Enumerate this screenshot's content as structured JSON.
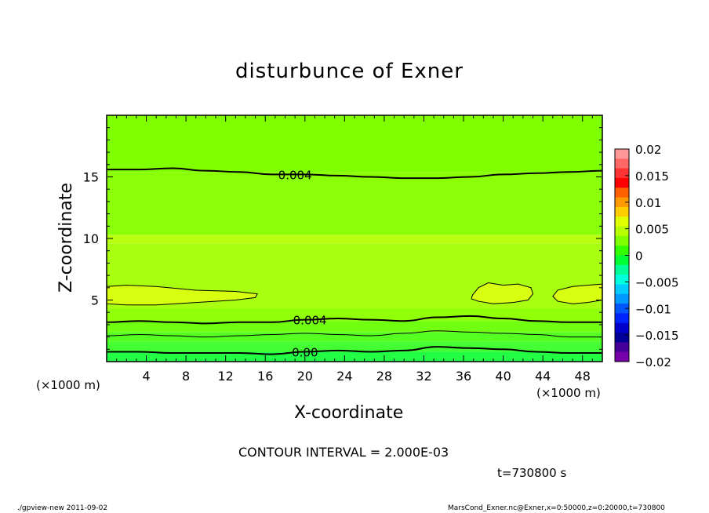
{
  "chart_data": {
    "type": "heatmap",
    "title": "disturbunce of Exner",
    "xlabel": "X-coordinate",
    "ylabel": "Z-coordinate",
    "x_unit": "(×1000 m)",
    "y_unit": "(×1000 m)",
    "xlim": [
      0,
      50
    ],
    "ylim": [
      0,
      20
    ],
    "x_ticks": [
      4,
      8,
      12,
      16,
      20,
      24,
      28,
      32,
      36,
      40,
      44,
      48
    ],
    "y_ticks": [
      5,
      10,
      15
    ],
    "colorbar": {
      "ticks": [
        0.02,
        0.015,
        0.01,
        0.005,
        0,
        -0.005,
        -0.01,
        -0.015,
        -0.02
      ],
      "tick_labels": [
        "0.02",
        "0.015",
        "0.01",
        "0.005",
        "0",
        "−0.005",
        "−0.01",
        "−0.015",
        "−0.02"
      ],
      "range": [
        -0.02,
        0.02
      ],
      "colors_top_to_bottom": [
        "#ff9999",
        "#ff6666",
        "#ff3333",
        "#ff0000",
        "#ff6000",
        "#ff9900",
        "#ffcc00",
        "#e0ff00",
        "#b8ff00",
        "#80ff00",
        "#33ff00",
        "#00ff33",
        "#00ff99",
        "#00ffdd",
        "#00ccff",
        "#0099ff",
        "#0055ff",
        "#0022ff",
        "#0000cc",
        "#000099",
        "#440099",
        "#7700aa"
      ]
    },
    "bands": [
      {
        "z_range": [
          0,
          0.8
        ],
        "color": "#22ff44"
      },
      {
        "z_range": [
          0.8,
          1.6
        ],
        "color": "#44ff33"
      },
      {
        "z_range": [
          1.6,
          2.4
        ],
        "color": "#55ff22"
      },
      {
        "z_range": [
          2.4,
          3.3
        ],
        "color": "#70ff10"
      },
      {
        "z_range": [
          3.3,
          4.3
        ],
        "color": "#90ff08"
      },
      {
        "z_range": [
          4.3,
          9.6
        ],
        "color": "#a8ff10"
      },
      {
        "z_range": [
          9.6,
          10.3
        ],
        "color": "#b8ff10"
      },
      {
        "z_range": [
          10.3,
          15.4
        ],
        "color": "#8aff08"
      },
      {
        "z_range": [
          15.4,
          20
        ],
        "color": "#80ff00"
      }
    ],
    "contours": [
      {
        "z": [
          15.6,
          15.6,
          15.7,
          15.5,
          15.4,
          15.2,
          15.2,
          15.1,
          15.0,
          14.9,
          14.9,
          15.0,
          15.2,
          15.3,
          15.4,
          15.5
        ],
        "label": "0.004",
        "label_x": 19,
        "width": 2
      },
      {
        "z": [
          3.2,
          3.3,
          3.2,
          3.1,
          3.2,
          3.2,
          3.4,
          3.5,
          3.4,
          3.3,
          3.6,
          3.7,
          3.5,
          3.3,
          3.2,
          3.2
        ],
        "label": "0.004",
        "label_x": 20.5,
        "width": 2
      },
      {
        "z": [
          2.1,
          2.2,
          2.1,
          2.0,
          2.1,
          2.2,
          2.3,
          2.2,
          2.1,
          2.3,
          2.5,
          2.4,
          2.3,
          2.2,
          2.0,
          2.0
        ],
        "label": "",
        "label_x": null,
        "width": 1
      },
      {
        "z": [
          0.8,
          0.8,
          0.7,
          0.7,
          0.7,
          0.6,
          0.8,
          0.9,
          0.8,
          0.9,
          1.2,
          1.1,
          1.0,
          0.8,
          0.7,
          0.7
        ],
        "label": "0.00",
        "label_x": 20,
        "width": 2
      }
    ],
    "closed_contours": [
      {
        "x": [
          0.0,
          2.0,
          5.0,
          9.0,
          13.0,
          15.2,
          15.0,
          13.0,
          9.0,
          5.0,
          2.0,
          0.0
        ],
        "z": [
          6.1,
          6.2,
          6.1,
          5.8,
          5.7,
          5.5,
          5.2,
          5.0,
          4.8,
          4.6,
          4.6,
          4.7
        ]
      },
      {
        "x": [
          36.9,
          37.5,
          38.5,
          40.0,
          41.5,
          42.8,
          43.0,
          42.5,
          41.0,
          39.0,
          37.5,
          36.8
        ],
        "z": [
          5.4,
          6.0,
          6.4,
          6.2,
          6.3,
          6.0,
          5.5,
          5.0,
          4.8,
          4.7,
          4.9,
          5.1
        ]
      },
      {
        "x": [
          50.0,
          48.5,
          47.0,
          45.5,
          45.0,
          45.5,
          47.0,
          48.5,
          50.0
        ],
        "z": [
          6.3,
          6.2,
          6.1,
          5.8,
          5.3,
          4.9,
          4.7,
          4.8,
          5.0
        ]
      }
    ],
    "contour_interval_text": "CONTOUR INTERVAL = 2.000E-03",
    "time_text": "t=730800 s",
    "footer_left": "./gpview-new   2011-09-02",
    "footer_right": "MarsCond_Exner.nc@Exner,x=0:50000,z=0:20000,t=730800"
  }
}
